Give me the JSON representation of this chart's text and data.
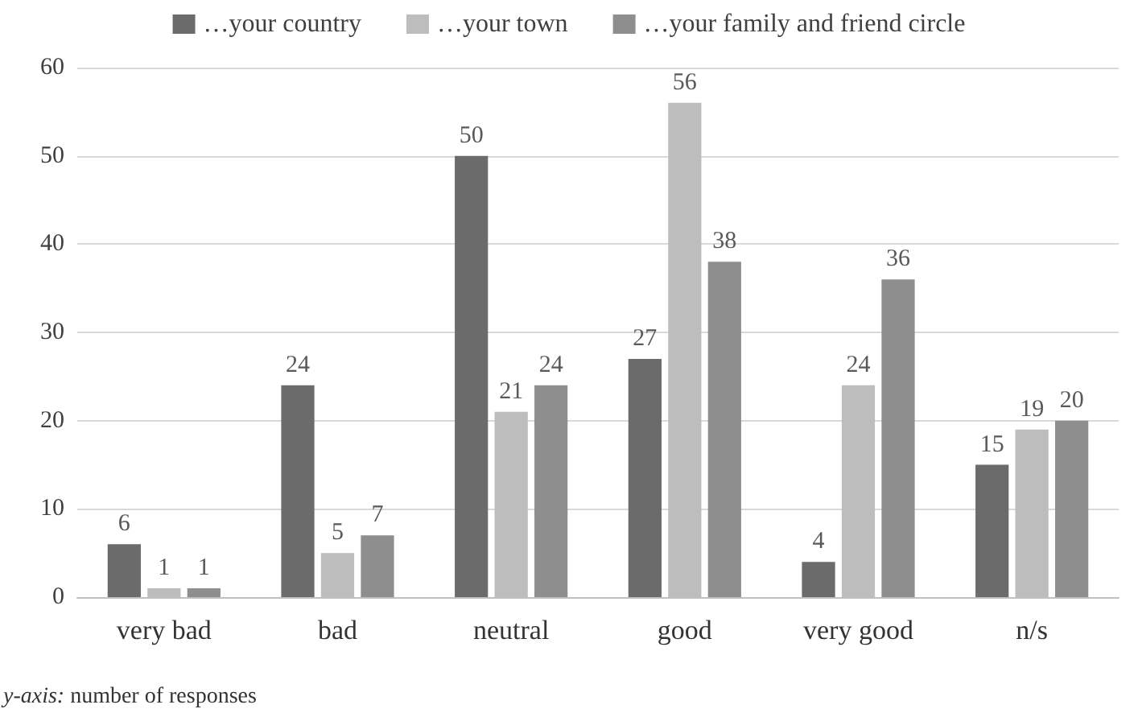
{
  "chart_data": {
    "type": "bar",
    "categories": [
      "very bad",
      "bad",
      "neutral",
      "good",
      "very good",
      "n/s"
    ],
    "series": [
      {
        "name": "…your country",
        "color": "#6b6b6b",
        "values": [
          6,
          24,
          50,
          27,
          4,
          15
        ]
      },
      {
        "name": "…your town",
        "color": "#bdbdbd",
        "values": [
          1,
          5,
          21,
          56,
          24,
          19
        ]
      },
      {
        "name": "…your family and friend circle",
        "color": "#8e8e8e",
        "values": [
          1,
          7,
          24,
          38,
          36,
          20
        ]
      }
    ],
    "ylim": [
      0,
      60
    ],
    "yticks": [
      0,
      10,
      20,
      30,
      40,
      50,
      60
    ],
    "grid": "y",
    "legend": "top",
    "data_labels": true,
    "annotations": [
      "y-axis: number of responses"
    ]
  }
}
